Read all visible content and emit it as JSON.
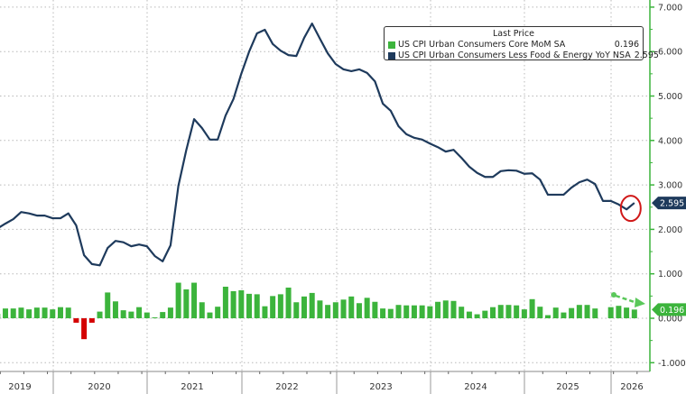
{
  "chart_data": {
    "type": "line+bar",
    "legend": {
      "title": "Last Price",
      "placement": "top-right",
      "entries": [
        {
          "name": "US CPI Urban Consumers Core MoM SA",
          "last": "0.196",
          "color": "#3cb43c"
        },
        {
          "name": "US CPI Urban Consumers Less Food & Energy YoY NSA",
          "last": "2.595",
          "color": "#1e3a5c"
        }
      ]
    },
    "y_axis": {
      "side": "right",
      "range": [
        -1,
        7
      ],
      "ticks": [
        "7.000",
        "6.000",
        "5.000",
        "4.000",
        "3.000",
        "2.000",
        "1.000",
        "0.000",
        "-1.000"
      ],
      "tick_values": [
        7,
        6,
        5,
        4,
        3,
        2,
        1,
        0,
        -1
      ],
      "color": "#3cb43c"
    },
    "x_axis": {
      "tick_labels": [
        "2019",
        "2020",
        "2021",
        "2022",
        "2023",
        "2024",
        "2025",
        "2026"
      ],
      "start_month": "2019-05",
      "end_month": "2026-02",
      "frequency": "monthly"
    },
    "grid": true,
    "negative_bar_color": "#d40000",
    "series": [
      {
        "name": "US CPI Urban Consumers Less Food & Energy YoY NSA",
        "type": "line",
        "color": "#1e3a5c",
        "values": [
          2.02,
          2.13,
          2.23,
          2.39,
          2.36,
          2.31,
          2.31,
          2.25,
          2.25,
          2.36,
          2.09,
          1.42,
          1.22,
          1.19,
          1.58,
          1.74,
          1.71,
          1.62,
          1.66,
          1.62,
          1.4,
          1.28,
          1.64,
          2.98,
          3.78,
          4.48,
          4.28,
          4.02,
          4.02,
          4.56,
          4.93,
          5.5,
          6.0,
          6.41,
          6.49,
          6.17,
          6.02,
          5.92,
          5.9,
          6.31,
          6.63,
          6.29,
          5.96,
          5.72,
          5.6,
          5.56,
          5.6,
          5.52,
          5.33,
          4.83,
          4.67,
          4.32,
          4.14,
          4.06,
          4.02,
          3.93,
          3.85,
          3.75,
          3.79,
          3.61,
          3.41,
          3.27,
          3.18,
          3.18,
          3.31,
          3.33,
          3.32,
          3.25,
          3.26,
          3.12,
          2.78,
          2.78,
          2.78,
          2.94,
          3.06,
          3.12,
          3.02,
          2.64,
          2.64,
          2.56,
          2.45,
          2.595
        ]
      },
      {
        "name": "US CPI Urban Consumers Core MoM SA",
        "type": "bar",
        "color": "#3cb43c",
        "values": [
          0.1,
          0.22,
          0.22,
          0.24,
          0.2,
          0.24,
          0.24,
          0.2,
          0.25,
          0.24,
          -0.1,
          -0.47,
          -0.1,
          0.15,
          0.58,
          0.38,
          0.18,
          0.15,
          0.25,
          0.13,
          0.02,
          0.14,
          0.24,
          0.8,
          0.65,
          0.8,
          0.36,
          0.13,
          0.26,
          0.71,
          0.61,
          0.63,
          0.55,
          0.54,
          0.27,
          0.5,
          0.54,
          0.69,
          0.36,
          0.49,
          0.57,
          0.4,
          0.3,
          0.36,
          0.42,
          0.49,
          0.34,
          0.46,
          0.37,
          0.22,
          0.21,
          0.3,
          0.29,
          0.29,
          0.29,
          0.27,
          0.37,
          0.4,
          0.39,
          0.26,
          0.15,
          0.09,
          0.17,
          0.25,
          0.3,
          0.3,
          0.29,
          0.2,
          0.43,
          0.26,
          0.07,
          0.24,
          0.13,
          0.23,
          0.3,
          0.3,
          0.22,
          null,
          0.25,
          0.28,
          0.24,
          0.196
        ]
      }
    ],
    "last_value_tags": [
      "2.595",
      "0.196"
    ],
    "annotations": [
      "red-circle-around-latest-yoy",
      "green-dashed-arrow-down-trend-mom"
    ]
  }
}
